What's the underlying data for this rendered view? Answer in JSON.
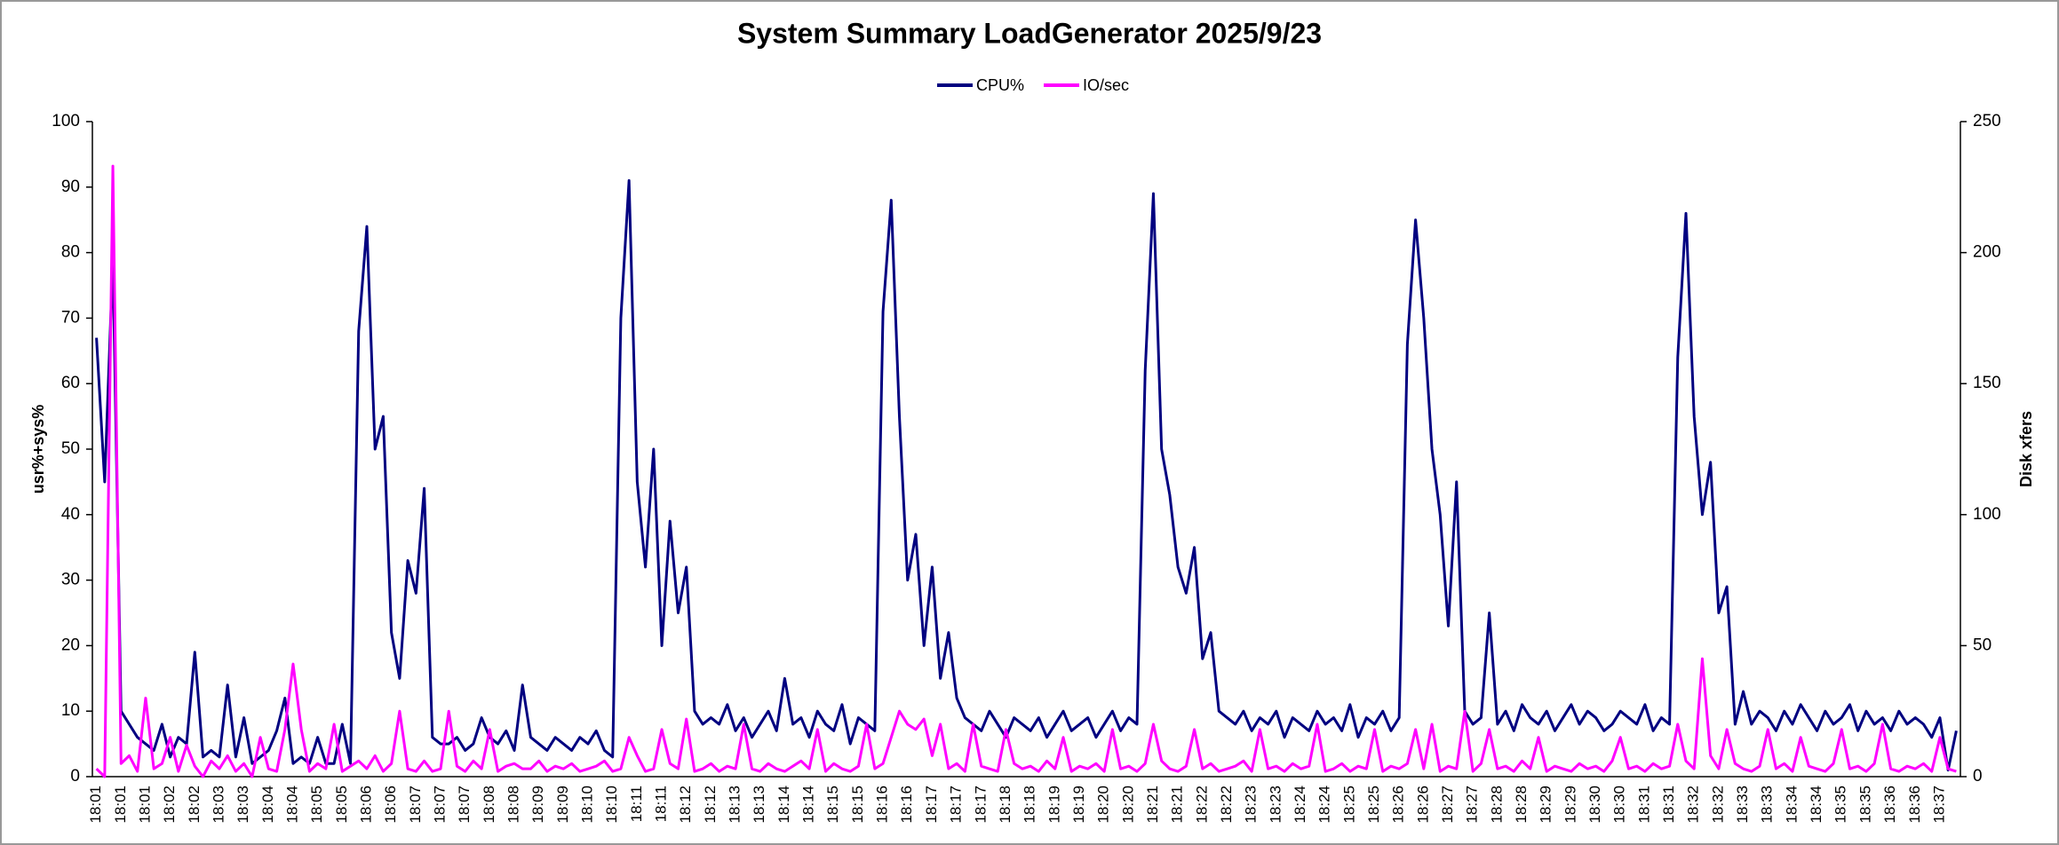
{
  "chart_data": {
    "type": "line",
    "title": "System Summary LoadGenerator  2025/9/23",
    "y_label": "usr%+sys%",
    "y2_label": "Disk xfers",
    "legend": "top",
    "ylim": [
      0,
      100
    ],
    "yticks": [
      0,
      10,
      20,
      30,
      40,
      50,
      60,
      70,
      80,
      90,
      100
    ],
    "y2lim": [
      0,
      250
    ],
    "y2ticks": [
      0,
      50,
      100,
      150,
      200,
      250
    ],
    "categories": [
      "18:01",
      null,
      null,
      "18:01",
      null,
      null,
      "18:01",
      null,
      null,
      "18:02",
      null,
      null,
      "18:02",
      null,
      null,
      "18:03",
      null,
      null,
      "18:03",
      null,
      null,
      "18:04",
      null,
      null,
      "18:04",
      null,
      null,
      "18:05",
      null,
      null,
      "18:05",
      null,
      null,
      "18:06",
      null,
      null,
      "18:06",
      null,
      null,
      "18:07",
      null,
      null,
      "18:07",
      null,
      null,
      "18:07",
      null,
      null,
      "18:08",
      null,
      null,
      "18:08",
      null,
      null,
      "18:09",
      null,
      null,
      "18:09",
      null,
      null,
      "18:10",
      null,
      null,
      "18:10",
      null,
      null,
      "18:11",
      null,
      null,
      "18:11",
      null,
      null,
      "18:12",
      null,
      null,
      "18:12",
      null,
      null,
      "18:13",
      null,
      null,
      "18:13",
      null,
      null,
      "18:14",
      null,
      null,
      "18:14",
      null,
      null,
      "18:15",
      null,
      null,
      "18:15",
      null,
      null,
      "18:16",
      null,
      null,
      "18:16",
      null,
      null,
      "18:17",
      null,
      null,
      "18:17",
      null,
      null,
      "18:17",
      null,
      null,
      "18:18",
      null,
      null,
      "18:18",
      null,
      null,
      "18:19",
      null,
      null,
      "18:19",
      null,
      null,
      "18:20",
      null,
      null,
      "18:20",
      null,
      null,
      "18:21",
      null,
      null,
      "18:21",
      null,
      null,
      "18:22",
      null,
      null,
      "18:22",
      null,
      null,
      "18:23",
      null,
      null,
      "18:23",
      null,
      null,
      "18:24",
      null,
      null,
      "18:24",
      null,
      null,
      "18:25",
      null,
      null,
      "18:25",
      null,
      null,
      "18:26",
      null,
      null,
      "18:26",
      null,
      null,
      "18:27",
      null,
      null,
      "18:27",
      null,
      null,
      "18:28",
      null,
      null,
      "18:28",
      null,
      null,
      "18:29",
      null,
      null,
      "18:29",
      null,
      null,
      "18:30",
      null,
      null,
      "18:30",
      null,
      null,
      "18:31",
      null,
      null,
      "18:31",
      null,
      null,
      "18:32",
      null,
      null,
      "18:32",
      null,
      null,
      "18:33",
      null,
      null,
      "18:33",
      null,
      null,
      "18:34",
      null,
      null,
      "18:34",
      null,
      null,
      "18:35",
      null,
      null,
      "18:35",
      null,
      null,
      "18:36",
      null,
      null,
      "18:36",
      null,
      null,
      "18:37",
      null,
      null
    ],
    "series": [
      {
        "name": "CPU%",
        "color": "#000080",
        "values": [
          67,
          45,
          79,
          10,
          8,
          6,
          5,
          4,
          8,
          3,
          6,
          5,
          19,
          3,
          4,
          3,
          14,
          3,
          9,
          2,
          3,
          4,
          7,
          12,
          2,
          3,
          2,
          6,
          2,
          2,
          8,
          2,
          68,
          84,
          50,
          55,
          22,
          15,
          33,
          28,
          44,
          6,
          5,
          5,
          6,
          4,
          5,
          9,
          6,
          5,
          7,
          4,
          14,
          6,
          5,
          4,
          6,
          5,
          4,
          6,
          5,
          7,
          4,
          3,
          70,
          91,
          45,
          32,
          50,
          20,
          39,
          25,
          32,
          10,
          8,
          9,
          8,
          11,
          7,
          9,
          6,
          8,
          10,
          7,
          15,
          8,
          9,
          6,
          10,
          8,
          7,
          11,
          5,
          9,
          8,
          7,
          71,
          88,
          55,
          30,
          37,
          20,
          32,
          15,
          22,
          12,
          9,
          8,
          7,
          10,
          8,
          6,
          9,
          8,
          7,
          9,
          6,
          8,
          10,
          7,
          8,
          9,
          6,
          8,
          10,
          7,
          9,
          8,
          62,
          89,
          50,
          43,
          32,
          28,
          35,
          18,
          22,
          10,
          9,
          8,
          10,
          7,
          9,
          8,
          10,
          6,
          9,
          8,
          7,
          10,
          8,
          9,
          7,
          11,
          6,
          9,
          8,
          10,
          7,
          9,
          66,
          85,
          70,
          50,
          40,
          23,
          45,
          10,
          8,
          9,
          25,
          8,
          10,
          7,
          11,
          9,
          8,
          10,
          7,
          9,
          11,
          8,
          10,
          9,
          7,
          8,
          10,
          9,
          8,
          11,
          7,
          9,
          8,
          64,
          86,
          55,
          40,
          48,
          25,
          29,
          8,
          13,
          8,
          10,
          9,
          7,
          10,
          8,
          11,
          9,
          7,
          10,
          8,
          9,
          11,
          7,
          10,
          8,
          9,
          7,
          10,
          8,
          9,
          8,
          6,
          9,
          1,
          7
        ]
      },
      {
        "name": "IO/sec",
        "color": "#ff00ff",
        "axis": "y2",
        "values": [
          3,
          0,
          233,
          5,
          8,
          2,
          30,
          3,
          5,
          15,
          2,
          12,
          4,
          0,
          6,
          3,
          8,
          2,
          5,
          0,
          15,
          3,
          2,
          18,
          43,
          18,
          2,
          5,
          3,
          20,
          2,
          4,
          6,
          3,
          8,
          2,
          5,
          25,
          3,
          2,
          6,
          2,
          3,
          25,
          4,
          2,
          6,
          3,
          18,
          2,
          4,
          5,
          3,
          3,
          6,
          2,
          4,
          3,
          5,
          2,
          3,
          4,
          6,
          2,
          3,
          15,
          8,
          2,
          3,
          18,
          5,
          3,
          22,
          2,
          3,
          5,
          2,
          4,
          3,
          20,
          3,
          2,
          5,
          3,
          2,
          4,
          6,
          3,
          18,
          2,
          5,
          3,
          2,
          4,
          20,
          3,
          5,
          15,
          25,
          20,
          18,
          22,
          8,
          20,
          3,
          5,
          2,
          20,
          4,
          3,
          2,
          18,
          5,
          3,
          4,
          2,
          6,
          3,
          15,
          2,
          4,
          3,
          5,
          2,
          18,
          3,
          4,
          2,
          5,
          20,
          6,
          3,
          2,
          4,
          18,
          3,
          5,
          2,
          3,
          4,
          6,
          2,
          18,
          3,
          4,
          2,
          5,
          3,
          4,
          20,
          2,
          3,
          5,
          2,
          4,
          3,
          18,
          2,
          4,
          3,
          5,
          18,
          3,
          20,
          2,
          4,
          3,
          25,
          2,
          5,
          18,
          3,
          4,
          2,
          6,
          3,
          15,
          2,
          4,
          3,
          2,
          5,
          3,
          4,
          2,
          6,
          15,
          3,
          4,
          2,
          5,
          3,
          4,
          20,
          6,
          3,
          45,
          8,
          3,
          18,
          5,
          3,
          2,
          4,
          18,
          3,
          5,
          2,
          15,
          4,
          3,
          2,
          5,
          18,
          3,
          4,
          2,
          5,
          20,
          3,
          2,
          4,
          3,
          5,
          2,
          15,
          3,
          2
        ]
      }
    ]
  }
}
